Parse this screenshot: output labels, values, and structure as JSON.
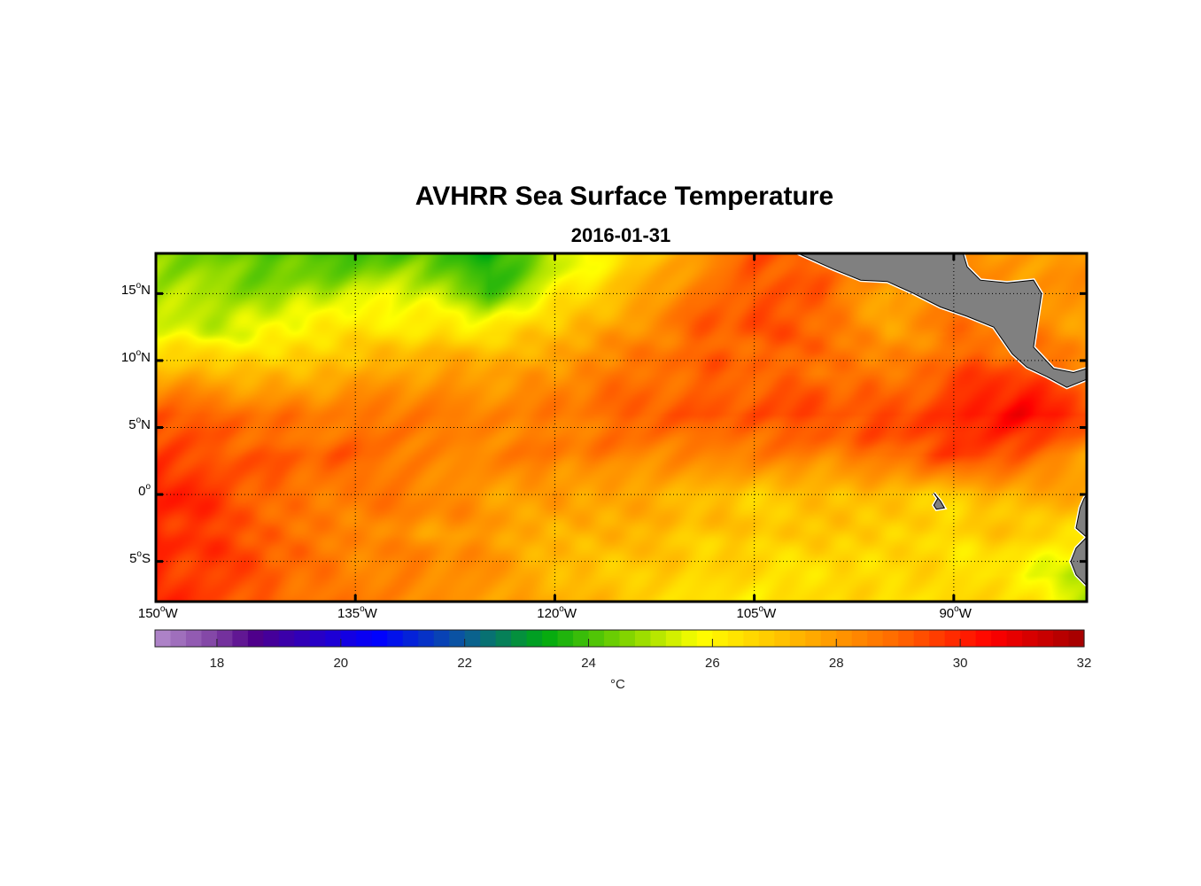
{
  "chart_data": {
    "type": "heatmap",
    "title": "AVHRR Sea Surface Temperature",
    "subtitle": "2016-01-31",
    "xlim": [
      -150,
      -80
    ],
    "ylim": [
      -8,
      18
    ],
    "grid": true,
    "degree_mark": "o",
    "lon_ticks": [
      {
        "value": -150,
        "num": "150",
        "hemi": "W"
      },
      {
        "value": -135,
        "num": "135",
        "hemi": "W"
      },
      {
        "value": -120,
        "num": "120",
        "hemi": "W"
      },
      {
        "value": -105,
        "num": "105",
        "hemi": "W"
      },
      {
        "value": -90,
        "num": "90",
        "hemi": "W"
      }
    ],
    "lat_ticks": [
      {
        "value": 15,
        "num": "15",
        "hemi": "N"
      },
      {
        "value": 10,
        "num": "10",
        "hemi": "N"
      },
      {
        "value": 5,
        "num": "5",
        "hemi": "N"
      },
      {
        "value": 0,
        "num": "0",
        "hemi": ""
      },
      {
        "value": -5,
        "num": "5",
        "hemi": "S"
      }
    ],
    "colorbar": {
      "range": [
        17,
        32
      ],
      "ticks": [
        "18",
        "20",
        "22",
        "24",
        "26",
        "28",
        "30",
        "32"
      ],
      "unit": "°C",
      "colormap": [
        [
          17,
          "#b48ccc"
        ],
        [
          18,
          "#7d3ea2"
        ],
        [
          18.6,
          "#50008a"
        ],
        [
          20.6,
          "#0000ff"
        ],
        [
          22,
          "#0b5a9a"
        ],
        [
          23.3,
          "#00aa10"
        ],
        [
          24.6,
          "#80d400"
        ],
        [
          25.8,
          "#ffff00"
        ],
        [
          27.4,
          "#ffb400"
        ],
        [
          29,
          "#ff6800"
        ],
        [
          30.5,
          "#ff0000"
        ],
        [
          32,
          "#a00000"
        ]
      ]
    },
    "grid_lons": [
      -150,
      -145,
      -140,
      -135,
      -130,
      -125,
      -120,
      -115,
      -110,
      -105,
      -100,
      -95,
      -90,
      -85,
      -80
    ],
    "grid_lats": [
      18,
      15,
      12,
      9,
      6,
      3,
      0,
      -3,
      -6,
      -8
    ],
    "sst": [
      [
        24.5,
        24.3,
        24.0,
        23.8,
        24.0,
        23.2,
        25.0,
        26.5,
        27.6,
        29.5,
        29.0,
        28.5,
        28.5,
        28.0,
        28.0
      ],
      [
        25.0,
        24.8,
        25.0,
        25.4,
        25.4,
        24.0,
        26.0,
        27.0,
        28.6,
        29.5,
        29.0,
        27.5,
        29.0,
        28.0,
        28.0
      ],
      [
        25.6,
        25.6,
        26.0,
        26.4,
        26.6,
        26.6,
        27.0,
        28.0,
        29.0,
        29.2,
        29.0,
        28.0,
        28.6,
        28.5,
        28.0
      ],
      [
        27.6,
        27.5,
        27.5,
        27.6,
        28.0,
        28.0,
        28.0,
        28.6,
        29.0,
        29.0,
        28.6,
        28.5,
        29.4,
        29.5,
        28.5
      ],
      [
        29.0,
        29.0,
        28.6,
        28.5,
        28.6,
        28.5,
        28.5,
        29.0,
        29.5,
        29.5,
        29.5,
        29.5,
        30.0,
        30.6,
        29.6
      ],
      [
        29.5,
        29.4,
        29.0,
        29.0,
        28.6,
        28.5,
        28.5,
        28.5,
        28.5,
        28.5,
        28.5,
        29.0,
        29.6,
        29.0,
        28.0
      ],
      [
        30.2,
        29.5,
        29.0,
        28.6,
        28.5,
        28.0,
        28.0,
        27.5,
        27.5,
        27.0,
        27.0,
        27.0,
        27.0,
        27.5,
        27.5
      ],
      [
        30.0,
        29.5,
        29.0,
        28.5,
        28.0,
        28.0,
        27.5,
        27.5,
        27.0,
        27.0,
        27.0,
        26.6,
        26.6,
        27.0,
        26.0
      ],
      [
        30.0,
        29.5,
        29.0,
        28.6,
        28.5,
        28.0,
        27.5,
        27.0,
        26.6,
        26.5,
        26.5,
        26.5,
        26.5,
        26.0,
        25.0
      ],
      [
        30.2,
        29.6,
        29.0,
        28.6,
        28.5,
        28.0,
        27.5,
        27.0,
        26.5,
        26.0,
        26.5,
        26.5,
        26.5,
        26.5,
        25.0
      ]
    ],
    "land": [
      {
        "name": "central-america",
        "coords": [
          [
            -101.7,
            18
          ],
          [
            -99,
            16.8
          ],
          [
            -97,
            16
          ],
          [
            -95,
            15.9
          ],
          [
            -93,
            15
          ],
          [
            -91,
            14
          ],
          [
            -89,
            13.3
          ],
          [
            -87,
            12.5
          ],
          [
            -85.6,
            10.5
          ],
          [
            -84.5,
            9.5
          ],
          [
            -83,
            8.8
          ],
          [
            -81.5,
            8
          ],
          [
            -80,
            8.6
          ],
          [
            -80,
            9.4
          ],
          [
            -81,
            9.1
          ],
          [
            -82.5,
            9.4
          ],
          [
            -84,
            11
          ],
          [
            -83.7,
            13
          ],
          [
            -83.4,
            15
          ],
          [
            -84,
            16
          ],
          [
            -86,
            15.8
          ],
          [
            -88,
            16
          ],
          [
            -89,
            17
          ],
          [
            -89.3,
            18
          ]
        ]
      },
      {
        "name": "south-america",
        "coords": [
          [
            -80,
            0
          ],
          [
            -80.2,
            -0.3
          ],
          [
            -80.5,
            -1
          ],
          [
            -80.8,
            -2.5
          ],
          [
            -80,
            -3.2
          ],
          [
            -80.8,
            -4
          ],
          [
            -81.2,
            -5
          ],
          [
            -80.8,
            -6
          ],
          [
            -80,
            -6.8
          ]
        ]
      },
      {
        "name": "galapagos",
        "coords": [
          [
            -91.5,
            0.1
          ],
          [
            -91.0,
            -0.5
          ],
          [
            -90.7,
            -1.0
          ],
          [
            -91.3,
            -1.1
          ],
          [
            -91.5,
            -0.8
          ],
          [
            -91.2,
            -0.3
          ]
        ]
      }
    ],
    "land_color": "#808080"
  }
}
